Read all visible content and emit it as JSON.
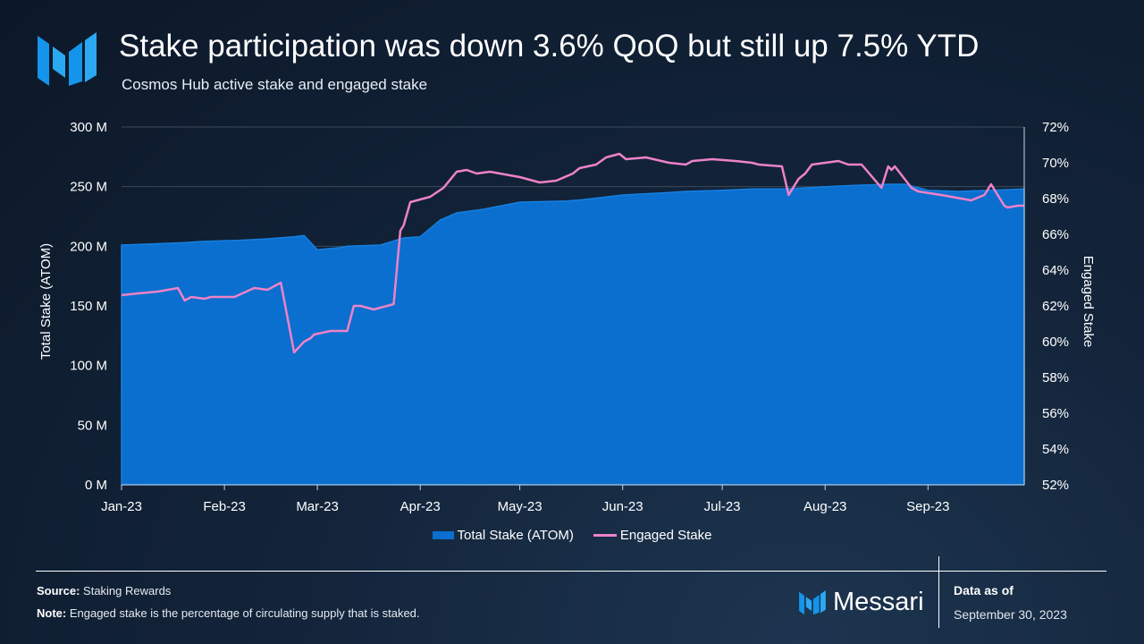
{
  "header": {
    "title": "Stake participation was down 3.6% QoQ but still up 7.5% YTD",
    "subtitle": "Cosmos Hub active stake and engaged stake"
  },
  "footer": {
    "source_label": "Source:",
    "source_text": "Staking Rewards",
    "note_label": "Note:",
    "note_text": "Engaged stake is the percentage of circulating supply that is staked.",
    "brand": "Messari",
    "as_of_label": "Data as of",
    "as_of_date": "September 30, 2023"
  },
  "colors": {
    "total_stake": "#0a6fce",
    "total_stake_edge": "#1580e0",
    "engaged_stake": "#ee82c8",
    "gridline": "#3c4a5a",
    "brand_blue": "#2aa8f2"
  },
  "icons": {
    "logo": "messari-logo-icon"
  },
  "chart_data": {
    "type": "area",
    "x_tick_labels": [
      "Jan-23",
      "Feb-23",
      "Mar-23",
      "Apr-23",
      "May-23",
      "Jun-23",
      "Jul-23",
      "Aug-23",
      "Sep-23"
    ],
    "x_range": [
      "2023-01-01",
      "2023-09-30"
    ],
    "ylabel": "Total Stake (ATOM)",
    "ylim": [
      0,
      300000000
    ],
    "y_tick_labels": [
      "0 M",
      "50 M",
      "100 M",
      "150 M",
      "200 M",
      "250 M",
      "300 M"
    ],
    "y_ticks": [
      0,
      50000000,
      100000000,
      150000000,
      200000000,
      250000000,
      300000000
    ],
    "y2label": "Engaged Stake",
    "y2lim": [
      52,
      72
    ],
    "y2_tick_labels": [
      "52%",
      "54%",
      "56%",
      "58%",
      "60%",
      "62%",
      "64%",
      "66%",
      "68%",
      "70%",
      "72%"
    ],
    "y2_ticks": [
      52,
      54,
      56,
      58,
      60,
      62,
      64,
      66,
      68,
      70,
      72
    ],
    "grid": true,
    "legend_position": "bottom",
    "series": [
      {
        "name": "Total Stake (ATOM)",
        "type": "area",
        "axis": "left",
        "x": [
          "2023-01-01",
          "2023-01-10",
          "2023-01-20",
          "2023-01-25",
          "2023-02-05",
          "2023-02-13",
          "2023-02-22",
          "2023-02-25",
          "2023-03-01",
          "2023-03-08",
          "2023-03-10",
          "2023-03-20",
          "2023-03-27",
          "2023-04-01",
          "2023-04-07",
          "2023-04-12",
          "2023-04-20",
          "2023-05-01",
          "2023-05-15",
          "2023-05-20",
          "2023-06-01",
          "2023-06-15",
          "2023-06-20",
          "2023-07-01",
          "2023-07-10",
          "2023-07-20",
          "2023-08-01",
          "2023-08-10",
          "2023-08-20",
          "2023-08-25",
          "2023-09-01",
          "2023-09-10",
          "2023-09-20",
          "2023-09-30"
        ],
        "values": [
          201000000,
          202000000,
          203000000,
          204000000,
          205000000,
          206000000,
          208000000,
          209000000,
          197000000,
          199000000,
          200000000,
          201000000,
          207000000,
          208000000,
          222000000,
          228000000,
          231000000,
          237000000,
          238000000,
          239000000,
          243000000,
          245000000,
          246000000,
          247000000,
          248000000,
          248000000,
          250000000,
          251000000,
          252000000,
          252000000,
          247000000,
          246000000,
          247000000,
          248000000
        ]
      },
      {
        "name": "Engaged Stake",
        "type": "line",
        "axis": "right",
        "x": [
          "2023-01-01",
          "2023-01-06",
          "2023-01-12",
          "2023-01-18",
          "2023-01-20",
          "2023-01-22",
          "2023-01-26",
          "2023-01-28",
          "2023-02-04",
          "2023-02-10",
          "2023-02-14",
          "2023-02-18",
          "2023-02-22",
          "2023-02-23",
          "2023-02-25",
          "2023-02-27",
          "2023-02-28",
          "2023-03-05",
          "2023-03-10",
          "2023-03-12",
          "2023-03-14",
          "2023-03-18",
          "2023-03-20",
          "2023-03-24",
          "2023-03-26",
          "2023-03-27",
          "2023-03-29",
          "2023-04-04",
          "2023-04-08",
          "2023-04-12",
          "2023-04-15",
          "2023-04-18",
          "2023-04-22",
          "2023-05-01",
          "2023-05-07",
          "2023-05-12",
          "2023-05-17",
          "2023-05-19",
          "2023-05-24",
          "2023-05-27",
          "2023-05-31",
          "2023-06-02",
          "2023-06-08",
          "2023-06-15",
          "2023-06-20",
          "2023-06-22",
          "2023-06-28",
          "2023-07-05",
          "2023-07-10",
          "2023-07-12",
          "2023-07-19",
          "2023-07-21",
          "2023-07-24",
          "2023-07-26",
          "2023-07-28",
          "2023-08-05",
          "2023-08-08",
          "2023-08-12",
          "2023-08-18",
          "2023-08-20",
          "2023-08-21",
          "2023-08-22",
          "2023-08-27",
          "2023-08-29",
          "2023-09-05",
          "2023-09-08",
          "2023-09-14",
          "2023-09-18",
          "2023-09-20",
          "2023-09-24",
          "2023-09-25",
          "2023-09-28",
          "2023-09-30"
        ],
        "values": [
          62.6,
          62.7,
          62.8,
          63.0,
          62.3,
          62.5,
          62.4,
          62.5,
          62.5,
          63.0,
          62.9,
          63.3,
          59.4,
          59.6,
          60.0,
          60.2,
          60.4,
          60.6,
          60.6,
          62.0,
          62.0,
          61.8,
          61.9,
          62.1,
          66.2,
          66.5,
          67.8,
          68.1,
          68.6,
          69.5,
          69.6,
          69.4,
          69.5,
          69.2,
          68.9,
          69.0,
          69.4,
          69.7,
          69.9,
          70.3,
          70.5,
          70.2,
          70.3,
          70.0,
          69.9,
          70.1,
          70.2,
          70.1,
          70.0,
          69.9,
          69.8,
          68.2,
          69.1,
          69.4,
          69.9,
          70.1,
          69.9,
          69.9,
          68.6,
          69.8,
          69.6,
          69.8,
          68.6,
          68.4,
          68.2,
          68.1,
          67.9,
          68.2,
          68.8,
          67.6,
          67.5,
          67.6,
          67.6
        ]
      }
    ]
  }
}
